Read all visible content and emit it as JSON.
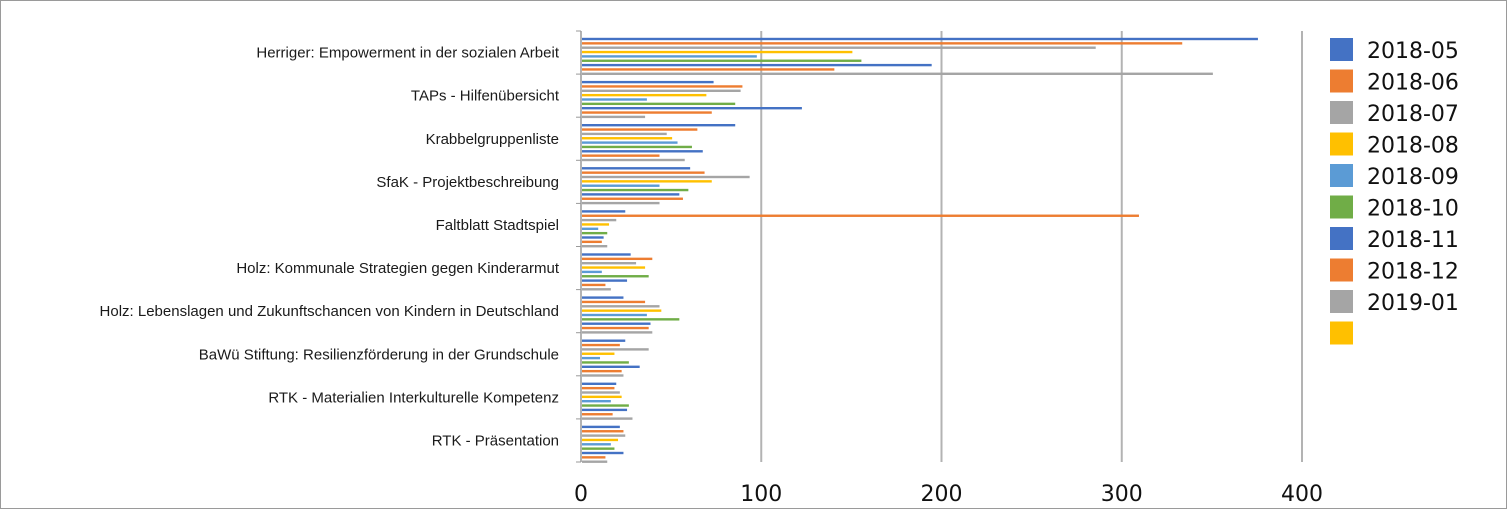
{
  "chart_data": {
    "type": "bar",
    "orientation": "horizontal",
    "categories": [
      "Herriger: Empowerment in der sozialen Arbeit",
      "TAPs - Hilfenübersicht",
      "Krabbelgruppenliste",
      "SfaK - Projektbeschreibung",
      "Faltblatt Stadtspiel",
      "Holz: Kommunale Strategien gegen Kinderarmut",
      "Holz: Lebenslagen und Zukunftschancen von Kindern in Deutschland",
      "BaWü Stiftung: Resilienzförderung in der Grundschule",
      "RTK - Materialien Interkulturelle Kompetenz",
      "RTK - Präsentation"
    ],
    "series": [
      {
        "name": "2018-05",
        "color": "#4472C4",
        "values": [
          375,
          73,
          85,
          60,
          24,
          27,
          23,
          24,
          19,
          21
        ]
      },
      {
        "name": "2018-06",
        "color": "#ED7D31",
        "values": [
          333,
          89,
          64,
          68,
          309,
          39,
          35,
          21,
          18,
          23
        ]
      },
      {
        "name": "2018-07",
        "color": "#A5A5A5",
        "values": [
          285,
          88,
          47,
          93,
          19,
          30,
          43,
          37,
          21,
          24
        ]
      },
      {
        "name": "2018-08",
        "color": "#FFC000",
        "values": [
          150,
          69,
          50,
          72,
          15,
          35,
          44,
          18,
          22,
          20
        ]
      },
      {
        "name": "2018-09",
        "color": "#5B9BD5",
        "values": [
          97,
          36,
          53,
          43,
          9,
          11,
          36,
          10,
          16,
          16
        ]
      },
      {
        "name": "2018-10",
        "color": "#70AD47",
        "values": [
          155,
          85,
          61,
          59,
          14,
          37,
          54,
          26,
          26,
          18
        ]
      },
      {
        "name": "2018-11",
        "color": "#4472C4",
        "values": [
          194,
          122,
          67,
          54,
          12,
          25,
          38,
          32,
          25,
          23
        ]
      },
      {
        "name": "2018-12",
        "color": "#ED7D31",
        "values": [
          140,
          72,
          43,
          56,
          11,
          13,
          37,
          22,
          17,
          13
        ]
      },
      {
        "name": "2019-01",
        "color": "#A5A5A5",
        "values": [
          350,
          35,
          57,
          43,
          14,
          16,
          39,
          23,
          28,
          14
        ]
      },
      {
        "name": "",
        "color": "#FFC000",
        "values": [
          null,
          null,
          null,
          null,
          null,
          null,
          null,
          null,
          null,
          null
        ]
      }
    ],
    "xlim": [
      0,
      400
    ],
    "xticks": [
      "0",
      "100",
      "200",
      "300",
      "400"
    ],
    "grid": true,
    "legend_position": "right",
    "title": "",
    "xlabel": "",
    "ylabel": ""
  }
}
